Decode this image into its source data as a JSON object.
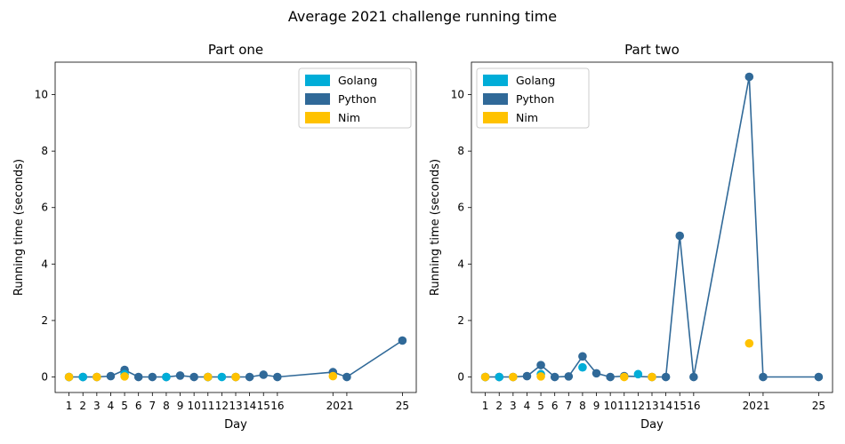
{
  "figure": {
    "suptitle": "Average 2021 challenge running time"
  },
  "colors": {
    "golang": "#00add8",
    "python": "#306998",
    "nim": "#ffc200"
  },
  "legend": {
    "placement_left": "top-right",
    "placement_right": "top-left"
  },
  "chart_data": [
    {
      "type": "scatter",
      "title": "Part one",
      "xlabel": "Day",
      "ylabel": "Running time (seconds)",
      "xlim": [
        0,
        26
      ],
      "ylim": [
        -0.55,
        11.15
      ],
      "xticks": [
        1,
        2,
        3,
        4,
        5,
        6,
        7,
        8,
        9,
        10,
        11,
        12,
        13,
        14,
        15,
        16,
        20,
        21,
        25
      ],
      "yticks": [
        0,
        2,
        4,
        6,
        8,
        10
      ],
      "grid": false,
      "legend": [
        "Golang",
        "Python",
        "Nim"
      ],
      "series": [
        {
          "name": "Golang",
          "color": "#00add8",
          "connected": false,
          "x": [
            1,
            2,
            5,
            8,
            11,
            12
          ],
          "y": [
            0.0,
            0.0,
            0.1,
            0.0,
            0.0,
            0.0
          ]
        },
        {
          "name": "Python",
          "color": "#306998",
          "connected": true,
          "x": [
            1,
            2,
            3,
            4,
            5,
            6,
            7,
            8,
            9,
            10,
            11,
            13,
            14,
            15,
            16,
            20,
            21,
            25
          ],
          "y": [
            0.0,
            0.0,
            0.0,
            0.03,
            0.25,
            0.0,
            0.0,
            0.0,
            0.05,
            0.0,
            0.0,
            0.0,
            0.0,
            0.08,
            0.0,
            0.17,
            0.0,
            1.29
          ]
        },
        {
          "name": "Nim",
          "color": "#ffc200",
          "connected": false,
          "x": [
            1,
            3,
            5,
            11,
            13,
            20
          ],
          "y": [
            0.0,
            0.0,
            0.02,
            0.0,
            0.0,
            0.03
          ]
        }
      ]
    },
    {
      "type": "scatter",
      "title": "Part two",
      "xlabel": "Day",
      "ylabel": "Running time (seconds)",
      "xlim": [
        0,
        26
      ],
      "ylim": [
        -0.55,
        11.15
      ],
      "xticks": [
        1,
        2,
        3,
        4,
        5,
        6,
        7,
        8,
        9,
        10,
        11,
        12,
        13,
        14,
        15,
        16,
        20,
        21,
        25
      ],
      "yticks": [
        0,
        2,
        4,
        6,
        8,
        10
      ],
      "grid": false,
      "legend": [
        "Golang",
        "Python",
        "Nim"
      ],
      "series": [
        {
          "name": "Golang",
          "color": "#00add8",
          "connected": false,
          "x": [
            1,
            2,
            5,
            8,
            12
          ],
          "y": [
            0.0,
            0.0,
            0.1,
            0.34,
            0.1
          ]
        },
        {
          "name": "Python",
          "color": "#306998",
          "connected": true,
          "x": [
            1,
            2,
            3,
            4,
            5,
            6,
            7,
            8,
            9,
            10,
            11,
            13,
            14,
            15,
            16,
            20,
            21,
            25
          ],
          "y": [
            0.0,
            0.0,
            0.0,
            0.03,
            0.42,
            0.0,
            0.02,
            0.73,
            0.13,
            0.0,
            0.03,
            0.0,
            0.0,
            5.0,
            0.0,
            10.63,
            0.0,
            0.0
          ]
        },
        {
          "name": "Nim",
          "color": "#ffc200",
          "connected": false,
          "x": [
            1,
            3,
            5,
            11,
            13,
            20
          ],
          "y": [
            0.0,
            0.0,
            0.02,
            0.0,
            0.0,
            1.19
          ]
        }
      ]
    }
  ]
}
